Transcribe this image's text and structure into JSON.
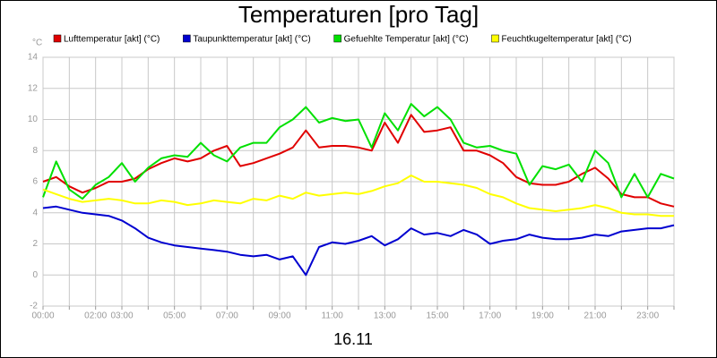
{
  "chart_data": {
    "type": "line",
    "title": "Temperaturen [pro Tag]",
    "subtitle": "16.11",
    "y_unit": "°C",
    "grid": true,
    "xlim": [
      0,
      24
    ],
    "ylim": [
      -2,
      14
    ],
    "yticks": [
      -2,
      0,
      2,
      4,
      6,
      8,
      10,
      12,
      14
    ],
    "xticks": [
      {
        "value": 0,
        "label": "00:00"
      },
      {
        "value": 1,
        "label": null
      },
      {
        "value": 2,
        "label": "02:00"
      },
      {
        "value": 3,
        "label": "03:00"
      },
      {
        "value": 4,
        "label": null
      },
      {
        "value": 5,
        "label": "05:00"
      },
      {
        "value": 6,
        "label": null
      },
      {
        "value": 7,
        "label": "07:00"
      },
      {
        "value": 8,
        "label": null
      },
      {
        "value": 9,
        "label": "09:00"
      },
      {
        "value": 10,
        "label": null
      },
      {
        "value": 11,
        "label": "11:00"
      },
      {
        "value": 12,
        "label": null
      },
      {
        "value": 13,
        "label": "13:00"
      },
      {
        "value": 14,
        "label": null
      },
      {
        "value": 15,
        "label": "15:00"
      },
      {
        "value": 16,
        "label": null
      },
      {
        "value": 17,
        "label": "17:00"
      },
      {
        "value": 18,
        "label": null
      },
      {
        "value": 19,
        "label": "19:00"
      },
      {
        "value": 20,
        "label": null
      },
      {
        "value": 21,
        "label": "21:00"
      },
      {
        "value": 22,
        "label": null
      },
      {
        "value": 23,
        "label": "23:00"
      },
      {
        "value": 24,
        "label": null
      }
    ],
    "x": [
      0,
      0.5,
      1,
      1.5,
      2,
      2.5,
      3,
      3.5,
      4,
      4.5,
      5,
      5.5,
      6,
      6.5,
      7,
      7.5,
      8,
      8.5,
      9,
      9.5,
      10,
      10.5,
      11,
      11.5,
      12,
      12.5,
      13,
      13.5,
      14,
      14.5,
      15,
      15.5,
      16,
      16.5,
      17,
      17.5,
      18,
      18.5,
      19,
      19.5,
      20,
      20.5,
      21,
      21.5,
      22,
      22.5,
      23,
      23.5,
      24
    ],
    "series": [
      {
        "name": "Lufttemperatur [akt] (°C)",
        "color": "#e00000",
        "values": [
          6.0,
          6.3,
          5.7,
          5.3,
          5.6,
          6.0,
          6.0,
          6.2,
          6.8,
          7.2,
          7.5,
          7.3,
          7.5,
          8.0,
          8.3,
          7.0,
          7.2,
          7.5,
          7.8,
          8.2,
          9.3,
          8.2,
          8.3,
          8.3,
          8.2,
          8.0,
          9.8,
          8.5,
          10.3,
          9.2,
          9.3,
          9.5,
          8.0,
          8.0,
          7.7,
          7.2,
          6.3,
          5.9,
          5.8,
          5.8,
          6.0,
          6.5,
          6.9,
          6.2,
          5.2,
          5.0,
          5.0,
          4.6,
          4.4
        ]
      },
      {
        "name": "Taupunkttemperatur [akt] (°C)",
        "color": "#0000d0",
        "values": [
          4.3,
          4.4,
          4.2,
          4.0,
          3.9,
          3.8,
          3.5,
          3.0,
          2.4,
          2.1,
          1.9,
          1.8,
          1.7,
          1.6,
          1.5,
          1.3,
          1.2,
          1.3,
          1.0,
          1.2,
          0.0,
          1.8,
          2.1,
          2.0,
          2.2,
          2.5,
          1.9,
          2.3,
          3.0,
          2.6,
          2.7,
          2.5,
          2.9,
          2.6,
          2.0,
          2.2,
          2.3,
          2.6,
          2.4,
          2.3,
          2.3,
          2.4,
          2.6,
          2.5,
          2.8,
          2.9,
          3.0,
          3.0,
          3.2
        ]
      },
      {
        "name": "Gefuehlte Temperatur [akt] (°C)",
        "color": "#00e000",
        "values": [
          5.0,
          7.3,
          5.5,
          4.9,
          5.8,
          6.3,
          7.2,
          6.0,
          6.9,
          7.5,
          7.7,
          7.6,
          8.5,
          7.7,
          7.3,
          8.2,
          8.5,
          8.5,
          9.5,
          10.0,
          10.8,
          9.8,
          10.1,
          9.9,
          10.0,
          8.2,
          10.4,
          9.3,
          11.0,
          10.2,
          10.8,
          10.0,
          8.5,
          8.2,
          8.3,
          8.0,
          7.8,
          5.8,
          7.0,
          6.8,
          7.1,
          6.0,
          8.0,
          7.2,
          5.0,
          6.5,
          5.0,
          6.5,
          6.2
        ]
      },
      {
        "name": "Feuchtkugeltemperatur [akt] (°C)",
        "color": "#ffff00",
        "values": [
          5.5,
          5.2,
          4.9,
          4.7,
          4.8,
          4.9,
          4.8,
          4.6,
          4.6,
          4.8,
          4.7,
          4.5,
          4.6,
          4.8,
          4.7,
          4.6,
          4.9,
          4.8,
          5.1,
          4.9,
          5.3,
          5.1,
          5.2,
          5.3,
          5.2,
          5.4,
          5.7,
          5.9,
          6.4,
          6.0,
          6.0,
          5.9,
          5.8,
          5.6,
          5.2,
          5.0,
          4.6,
          4.3,
          4.2,
          4.1,
          4.2,
          4.3,
          4.5,
          4.3,
          4.0,
          3.9,
          3.9,
          3.8,
          3.8
        ]
      }
    ]
  }
}
